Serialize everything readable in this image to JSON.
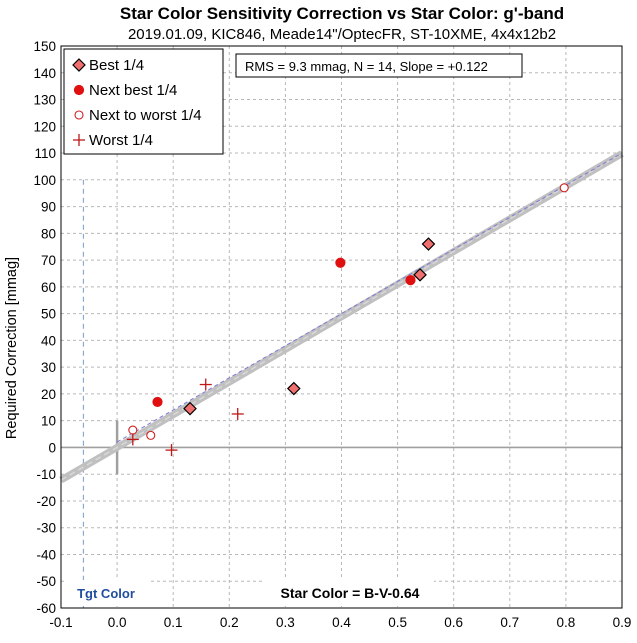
{
  "chart_data": {
    "type": "scatter",
    "title": "Star Color Sensitivity Correction vs Star Color: g'-band",
    "subtitle": "2019.01.09, KIC846, Meade14\"/OptecFR, ST-10XME, 4x4x12b2",
    "ylabel": "Required Correction [mmag]",
    "xlabel": "Star Color = B-V-0.64",
    "stats_text": "RMS = 9.3 mmag, N = 14, Slope = +0.122",
    "target_label": "Tgt Color",
    "target_color_x": -0.06,
    "xlim": [
      -0.1,
      0.9
    ],
    "ylim": [
      -60,
      150
    ],
    "x_ticks": [
      -0.1,
      0,
      0.1,
      0.2,
      0.3,
      0.4,
      0.5,
      0.6,
      0.7,
      0.8,
      0.9
    ],
    "x_tick_labels": [
      "-0.1",
      "0.0",
      "0.1",
      "0.2",
      "0.3",
      "0.4",
      "0.5",
      "0.6",
      "0.7",
      "0.8",
      "0.9"
    ],
    "y_ticks": [
      -60,
      -50,
      -40,
      -30,
      -20,
      -10,
      0,
      10,
      20,
      30,
      40,
      50,
      60,
      70,
      80,
      90,
      100,
      110,
      120,
      130,
      140,
      150
    ],
    "y_tick_labels": [
      "-60",
      "-50",
      "-40",
      "-30",
      "-20",
      "-10",
      "0",
      "10",
      "20",
      "30",
      "40",
      "50",
      "60",
      "70",
      "80",
      "90",
      "100",
      "110",
      "120",
      "130",
      "140",
      "150"
    ],
    "grid": true,
    "legend_position": "top-left",
    "fit_line": {
      "slope_per_unit": 122,
      "intercept": 0,
      "color": "#c0c0c0"
    },
    "dashed_line": {
      "points": [
        [
          0.0,
          2
        ],
        [
          0.9,
          110
        ]
      ],
      "color": "#7b7bd6"
    },
    "series": [
      {
        "name": "Best 1/4",
        "marker": "diamond",
        "fill": "#f07070",
        "stroke": "#000000",
        "points": [
          [
            0.13,
            14.5
          ],
          [
            0.315,
            22
          ],
          [
            0.54,
            64.5
          ],
          [
            0.555,
            76
          ]
        ]
      },
      {
        "name": "Next best 1/4",
        "marker": "circle-filled",
        "fill": "#e01010",
        "stroke": "#e01010",
        "points": [
          [
            0.072,
            17
          ],
          [
            0.398,
            69
          ],
          [
            0.523,
            62.5
          ]
        ]
      },
      {
        "name": "Next to worst 1/4",
        "marker": "circle-open",
        "fill": "none",
        "stroke": "#d02020",
        "points": [
          [
            0.028,
            6.5
          ],
          [
            0.06,
            4.5
          ],
          [
            0.797,
            97
          ]
        ]
      },
      {
        "name": "Worst 1/4",
        "marker": "plus",
        "fill": "none",
        "stroke": "#c01818",
        "points": [
          [
            0.028,
            3
          ],
          [
            0.097,
            -1
          ],
          [
            0.158,
            23.5
          ],
          [
            0.215,
            12.5
          ]
        ]
      }
    ]
  }
}
